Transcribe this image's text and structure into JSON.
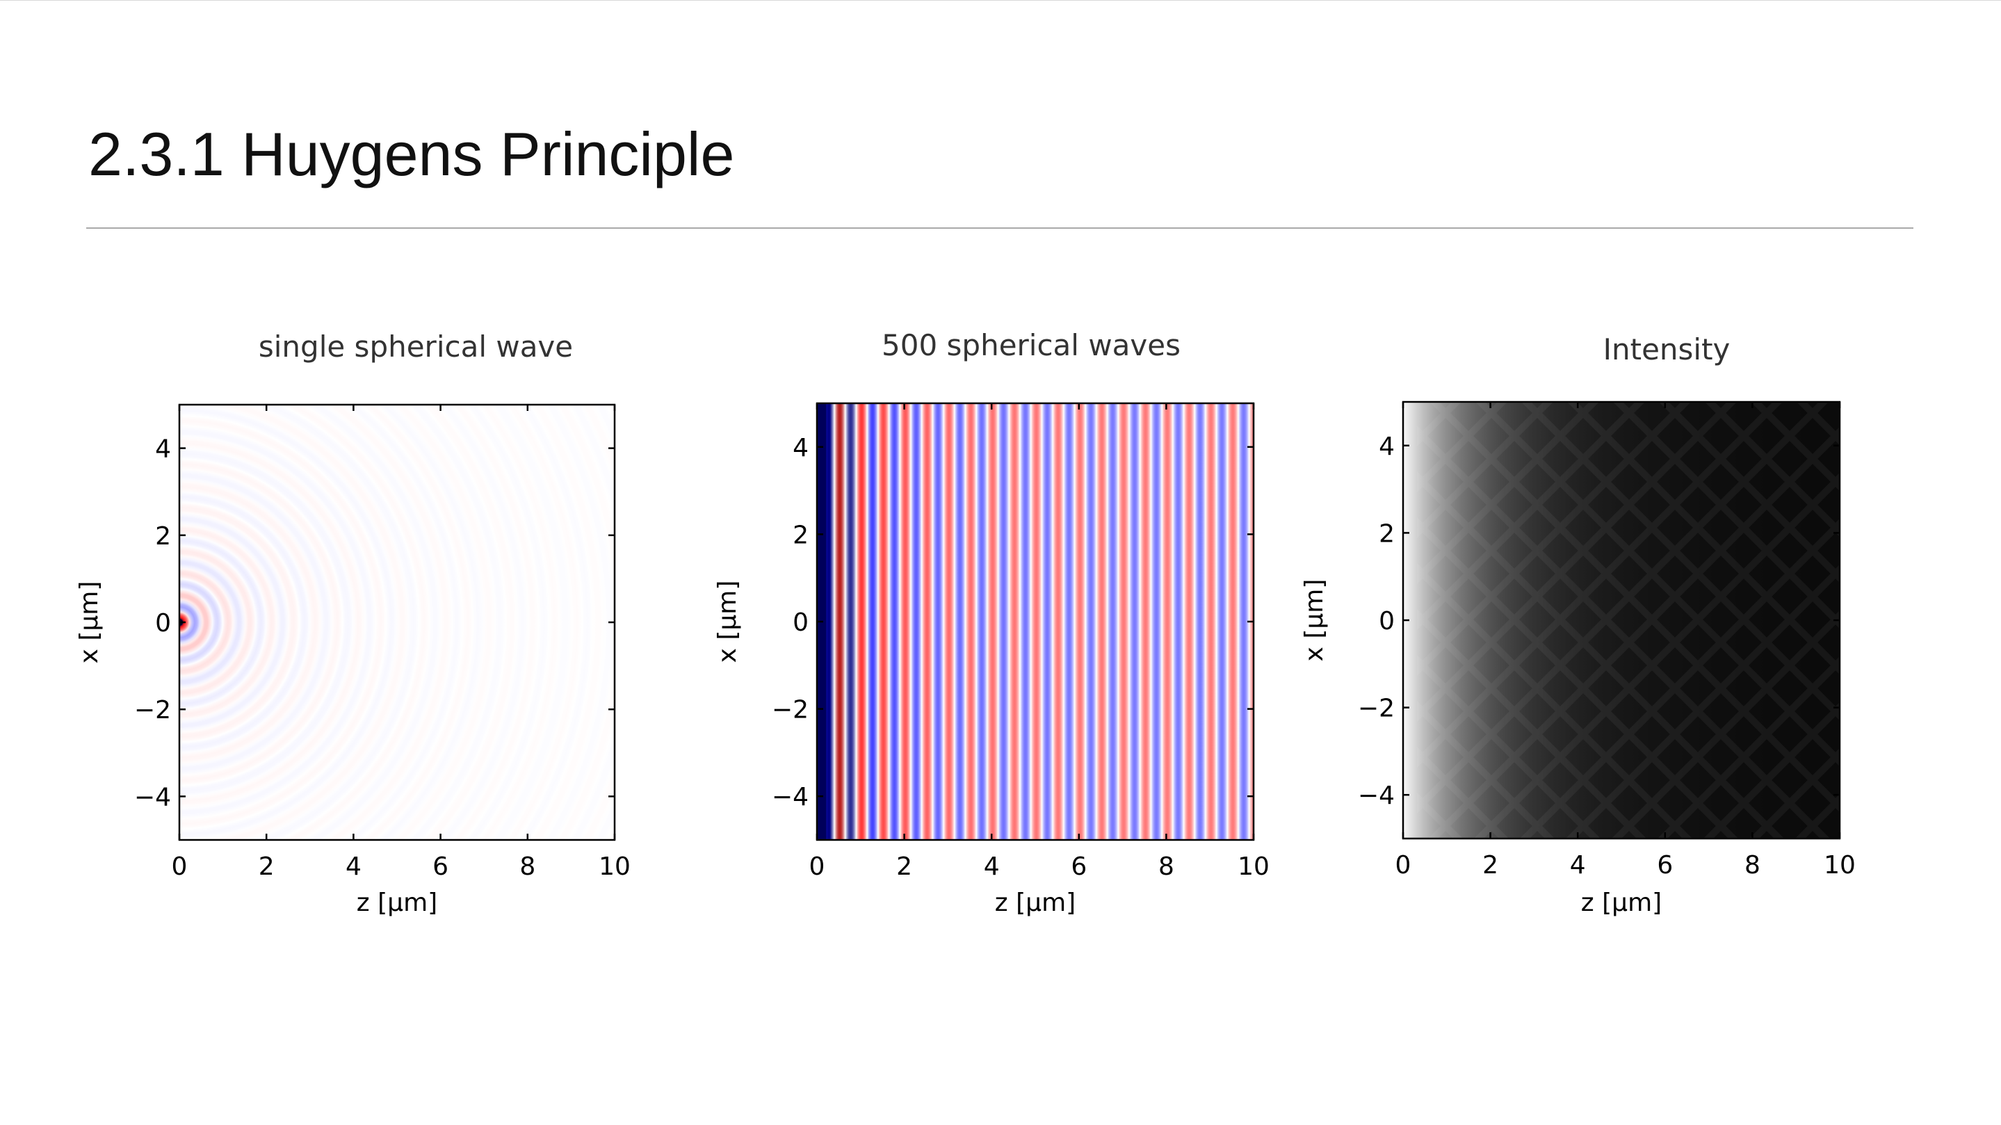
{
  "slide": {
    "title": "2.3.1 Huygens Principle"
  },
  "chart_data": [
    {
      "type": "heatmap",
      "title": "single spherical wave",
      "xlabel": "z [µm]",
      "ylabel": "x [µm]",
      "xlim": [
        0,
        10
      ],
      "ylim": [
        -5,
        5
      ],
      "xticks": [
        0,
        2,
        4,
        6,
        8,
        10
      ],
      "xtick_labels": [
        "0",
        "2",
        "4",
        "6",
        "8",
        "10"
      ],
      "yticks": [
        4,
        2,
        0,
        -2,
        -4
      ],
      "ytick_labels": [
        "4",
        "2",
        "0",
        "−2",
        "−4"
      ],
      "colormap": "seismic",
      "field": "spherical wave from a point source at (z=0, x=0)",
      "wavelength_um": 0.5,
      "source": {
        "z": 0,
        "x": 0
      }
    },
    {
      "type": "heatmap",
      "title": "500 spherical waves",
      "xlabel": "z [µm]",
      "ylabel": "x [µm]",
      "xlim": [
        0,
        10
      ],
      "ylim": [
        -5,
        5
      ],
      "xticks": [
        0,
        2,
        4,
        6,
        8,
        10
      ],
      "xtick_labels": [
        "0",
        "2",
        "4",
        "6",
        "8",
        "10"
      ],
      "yticks": [
        4,
        2,
        0,
        -2,
        -4
      ],
      "ytick_labels": [
        "4",
        "2",
        "0",
        "−2",
        "−4"
      ],
      "colormap": "seismic",
      "field": "superposition of 500 point sources along z=0 (plane wavefronts)",
      "wavelength_um": 0.5,
      "num_sources": 500
    },
    {
      "type": "heatmap",
      "title": "Intensity",
      "xlabel": "z [µm]",
      "ylabel": "x [µm]",
      "xlim": [
        0,
        10
      ],
      "ylim": [
        -5,
        5
      ],
      "xticks": [
        0,
        2,
        4,
        6,
        8,
        10
      ],
      "xtick_labels": [
        "0",
        "2",
        "4",
        "6",
        "8",
        "10"
      ],
      "yticks": [
        4,
        2,
        0,
        -2,
        -4
      ],
      "ytick_labels": [
        "4",
        "2",
        "0",
        "−2",
        "−4"
      ],
      "colormap": "gray",
      "field": "intensity of the superposed field, decaying with z"
    }
  ]
}
